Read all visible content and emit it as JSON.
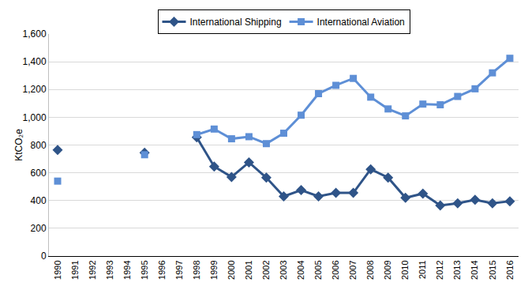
{
  "chart_data": {
    "type": "line",
    "y_label": "KtCO₂e",
    "categories": [
      "1990",
      "1991",
      "1992",
      "1993",
      "1994",
      "1995",
      "1996",
      "1997",
      "1998",
      "1999",
      "2000",
      "2001",
      "2002",
      "2003",
      "2004",
      "2005",
      "2006",
      "2007",
      "2008",
      "2009",
      "2010",
      "2011",
      "2012",
      "2013",
      "2014",
      "2015",
      "2016"
    ],
    "series": [
      {
        "name": "International Shipping",
        "color": "#2F5488",
        "marker": "diamond",
        "line_style": "solid",
        "values": [
          765,
          null,
          null,
          null,
          null,
          745,
          null,
          null,
          855,
          645,
          570,
          675,
          565,
          430,
          475,
          430,
          455,
          455,
          625,
          565,
          420,
          450,
          365,
          380,
          405,
          380,
          395
        ]
      },
      {
        "name": "International Aviation",
        "color": "#5E8FD6",
        "marker": "square",
        "line_style": "solid",
        "values": [
          540,
          null,
          null,
          null,
          null,
          730,
          null,
          null,
          875,
          915,
          845,
          860,
          810,
          885,
          1015,
          1170,
          1230,
          1280,
          1145,
          1060,
          1010,
          1095,
          1090,
          1150,
          1205,
          1320,
          1425
        ]
      }
    ],
    "ylim": [
      0,
      1600
    ],
    "yticks": [
      0,
      200,
      400,
      600,
      800,
      {
        "value": 1000,
        "label": "1,000"
      },
      {
        "value": 1200,
        "label": "1,200"
      },
      {
        "value": 1400,
        "label": "1,400"
      },
      {
        "value": 1600,
        "label": "1,600"
      }
    ],
    "grid": true,
    "legend": "top"
  }
}
